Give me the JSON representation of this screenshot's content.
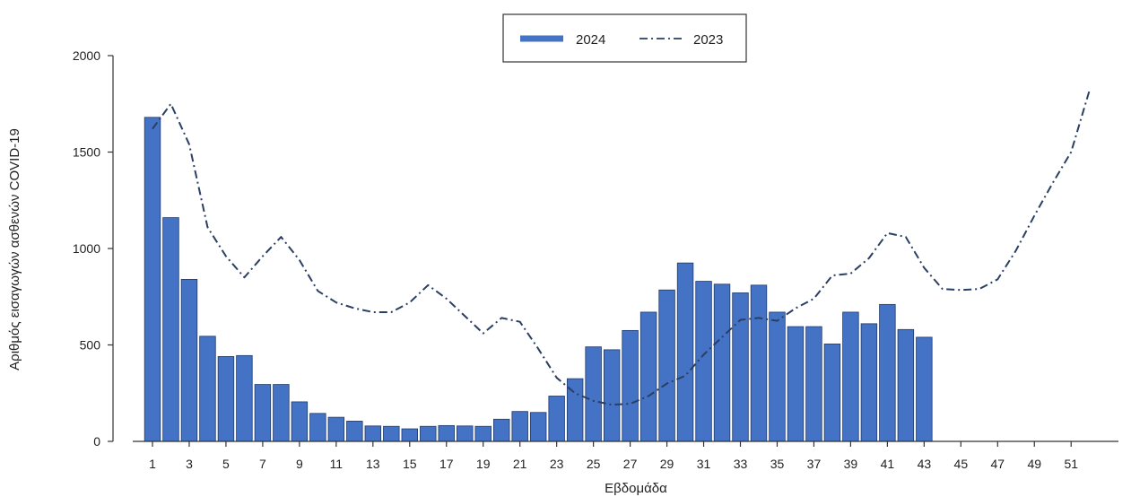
{
  "chart_data": {
    "type": "bar",
    "xlabel": "Εβδομάδα",
    "ylabel": "Αριθμός εισαγωγών ασθενών COVID-19",
    "ylim": [
      0,
      2000
    ],
    "yticks": [
      0,
      500,
      1000,
      1500,
      2000
    ],
    "xlim": [
      0,
      53
    ],
    "xticks": [
      1,
      3,
      5,
      7,
      9,
      11,
      13,
      15,
      17,
      19,
      21,
      23,
      25,
      27,
      29,
      31,
      33,
      35,
      37,
      39,
      41,
      43,
      45,
      47,
      49,
      51
    ],
    "legend_position": "top-center",
    "series": [
      {
        "name": "2024",
        "style": "bar",
        "color": "#4472c4",
        "x": [
          1,
          2,
          3,
          4,
          5,
          6,
          7,
          8,
          9,
          10,
          11,
          12,
          13,
          14,
          15,
          16,
          17,
          18,
          19,
          20,
          21,
          22,
          23,
          24,
          25,
          26,
          27,
          28,
          29,
          30,
          31,
          32,
          33,
          34,
          35,
          36,
          37,
          38,
          39,
          40,
          41,
          42,
          43
        ],
        "values": [
          1680,
          1160,
          840,
          545,
          440,
          445,
          295,
          295,
          205,
          145,
          125,
          105,
          80,
          78,
          65,
          78,
          82,
          80,
          78,
          115,
          155,
          150,
          235,
          325,
          490,
          475,
          575,
          670,
          785,
          925,
          830,
          815,
          770,
          810,
          670,
          595,
          595,
          505,
          670,
          610,
          710,
          580,
          540
        ]
      },
      {
        "name": "2023",
        "style": "dash-dot line",
        "color": "#2a3f62",
        "x": [
          1,
          2,
          3,
          4,
          5,
          6,
          7,
          8,
          9,
          10,
          11,
          12,
          13,
          14,
          15,
          16,
          17,
          18,
          19,
          20,
          21,
          22,
          23,
          24,
          25,
          26,
          27,
          28,
          29,
          30,
          31,
          32,
          33,
          34,
          35,
          36,
          37,
          38,
          39,
          40,
          41,
          42,
          43,
          44,
          45,
          46,
          47,
          48,
          49,
          50,
          51,
          52
        ],
        "values": [
          1620,
          1750,
          1540,
          1110,
          960,
          850,
          960,
          1060,
          940,
          780,
          720,
          690,
          670,
          670,
          720,
          810,
          740,
          650,
          560,
          640,
          620,
          480,
          330,
          250,
          210,
          190,
          195,
          235,
          300,
          340,
          450,
          540,
          630,
          640,
          625,
          690,
          740,
          860,
          870,
          950,
          1080,
          1060,
          900,
          790,
          785,
          790,
          840,
          990,
          1170,
          1340,
          1500,
          1820
        ]
      }
    ]
  }
}
